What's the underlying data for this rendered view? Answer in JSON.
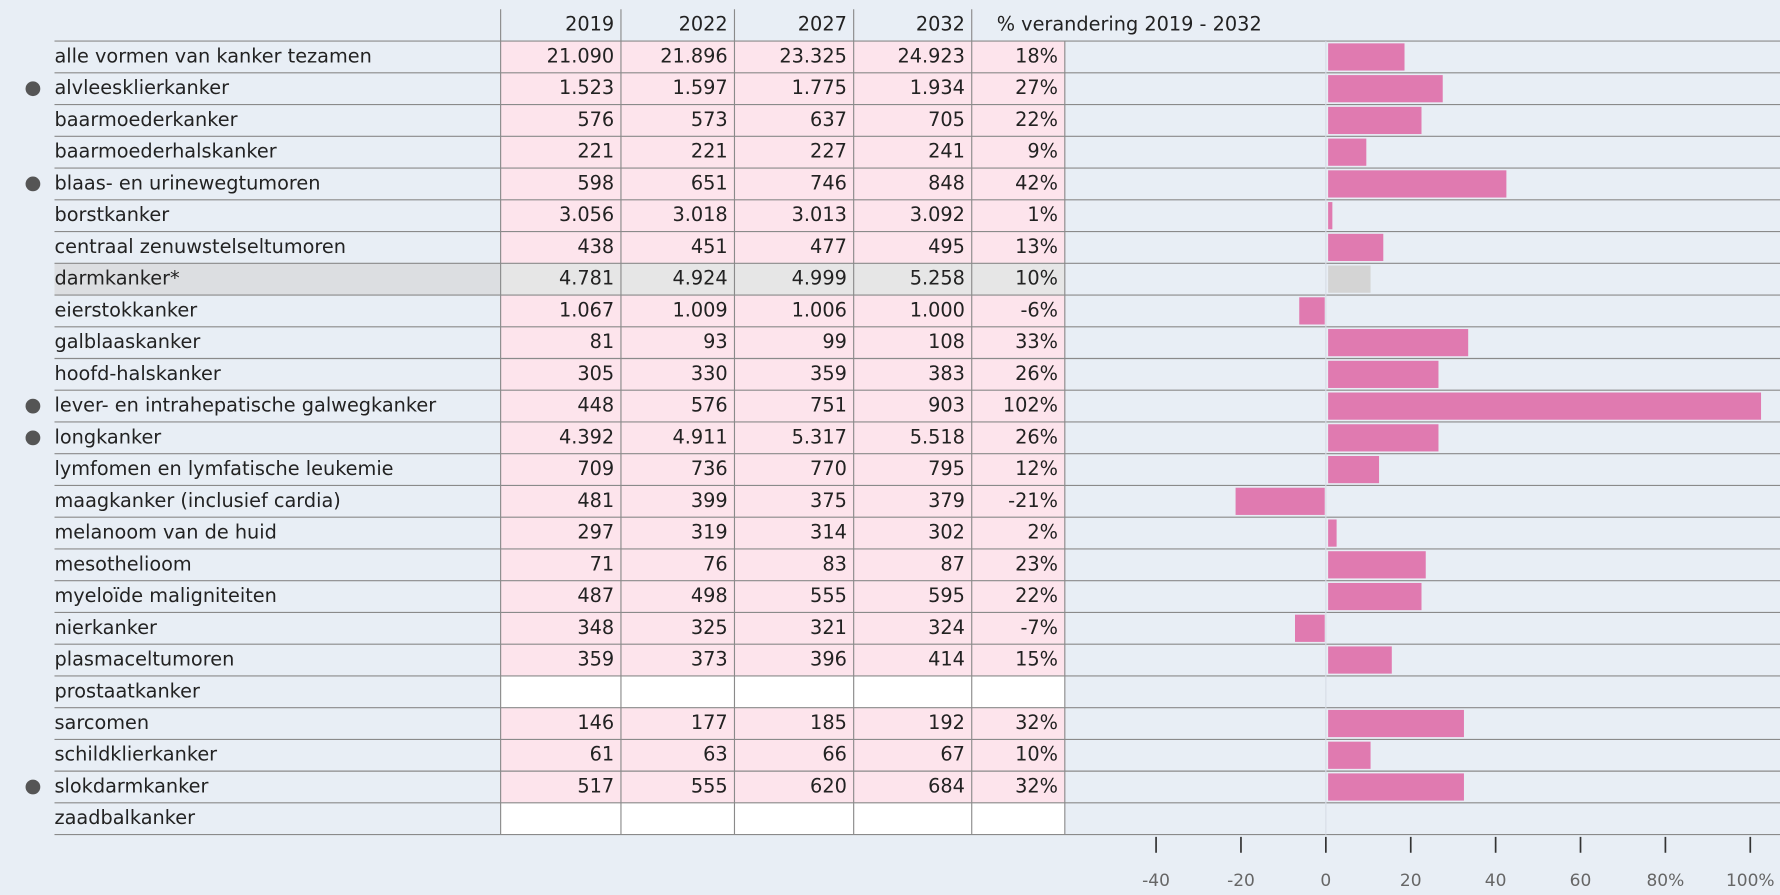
{
  "chart_data": {
    "type": "bar",
    "columns": [
      "2019",
      "2022",
      "2027",
      "2032",
      "% verandering 2019 - 2032"
    ],
    "categories": [
      "alle vormen van kanker tezamen",
      "alvleesklierkanker",
      "baarmoederkanker",
      "baarmoederhalskanker",
      "blaas- en urinewegtumoren",
      "borstkanker",
      "centraal zenuwstelseltumoren",
      "darmkanker*",
      "eierstokkanker",
      "galblaaskanker",
      "hoofd-halskanker",
      "lever- en intrahepatische galwegkanker",
      "longkanker",
      "lymfomen en lymfatische leukemie",
      "maagkanker (inclusief cardia)",
      "melanoom van de huid",
      "mesothelioom",
      "myeloïde maligniteiten",
      "nierkanker",
      "plasmaceltumoren",
      "prostaatkanker",
      "sarcomen",
      "schildklierkanker",
      "slokdarmkanker",
      "zaadbalkanker"
    ],
    "rows": [
      [
        "21.090",
        "21.896",
        "23.325",
        "24.923"
      ],
      [
        "1.523",
        "1.597",
        "1.775",
        "1.934"
      ],
      [
        "576",
        "573",
        "637",
        "705"
      ],
      [
        "221",
        "221",
        "227",
        "241"
      ],
      [
        "598",
        "651",
        "746",
        "848"
      ],
      [
        "3.056",
        "3.018",
        "3.013",
        "3.092"
      ],
      [
        "438",
        "451",
        "477",
        "495"
      ],
      [
        "4.781",
        "4.924",
        "4.999",
        "5.258"
      ],
      [
        "1.067",
        "1.009",
        "1.006",
        "1.000"
      ],
      [
        "81",
        "93",
        "99",
        "108"
      ],
      [
        "305",
        "330",
        "359",
        "383"
      ],
      [
        "448",
        "576",
        "751",
        "903"
      ],
      [
        "4.392",
        "4.911",
        "5.317",
        "5.518"
      ],
      [
        "709",
        "736",
        "770",
        "795"
      ],
      [
        "481",
        "399",
        "375",
        "379"
      ],
      [
        "297",
        "319",
        "314",
        "302"
      ],
      [
        "71",
        "76",
        "83",
        "87"
      ],
      [
        "487",
        "498",
        "555",
        "595"
      ],
      [
        "348",
        "325",
        "321",
        "324"
      ],
      [
        "359",
        "373",
        "396",
        "414"
      ],
      [
        null,
        null,
        null,
        null
      ],
      [
        "146",
        "177",
        "185",
        "192"
      ],
      [
        "61",
        "63",
        "66",
        "67"
      ],
      [
        "517",
        "555",
        "620",
        "684"
      ],
      [
        null,
        null,
        null,
        null
      ]
    ],
    "values": [
      18,
      27,
      22,
      9,
      42,
      1,
      13,
      10,
      -6,
      33,
      26,
      102,
      26,
      12,
      -21,
      2,
      23,
      22,
      -7,
      15,
      null,
      32,
      10,
      32,
      null
    ],
    "value_labels": [
      "18%",
      "27%",
      "22%",
      "9%",
      "42%",
      "1%",
      "13%",
      "10%",
      "-6%",
      "33%",
      "26%",
      "102%",
      "26%",
      "12%",
      "-21%",
      "2%",
      "23%",
      "22%",
      "-7%",
      "15%",
      null,
      "32%",
      "10%",
      "32%",
      null
    ],
    "color": "#e07ab0",
    "highlight": 7,
    "highlight_color": "#d4d4d4",
    "marked": [
      1,
      4,
      11,
      12,
      23
    ],
    "xlim": [
      -61.5,
      107
    ],
    "xticks": [
      -40,
      -20,
      0,
      20,
      40,
      60,
      {
        "value": 80,
        "label": "80%"
      },
      {
        "value": 100,
        "label": "100%"
      }
    ]
  }
}
